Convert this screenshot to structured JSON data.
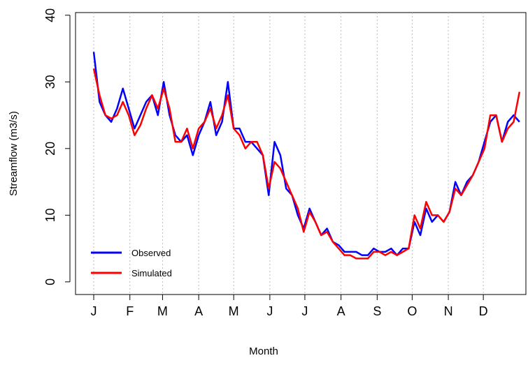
{
  "chart_data": {
    "type": "line",
    "x_label": "Month",
    "y_label": "Streamflow (m3/s)",
    "x": [
      1,
      6,
      11,
      16,
      21,
      26,
      31,
      36,
      41,
      46,
      51,
      56,
      61,
      66,
      71,
      76,
      81,
      86,
      91,
      96,
      101,
      106,
      111,
      116,
      121,
      126,
      131,
      136,
      141,
      146,
      151,
      156,
      161,
      166,
      171,
      176,
      181,
      186,
      191,
      196,
      201,
      206,
      211,
      216,
      221,
      226,
      231,
      236,
      241,
      246,
      251,
      256,
      261,
      266,
      271,
      276,
      281,
      286,
      291,
      296,
      301,
      306,
      311,
      316,
      321,
      326,
      331,
      336,
      341,
      346,
      351,
      356,
      361,
      366
    ],
    "series": [
      {
        "name": "Observed",
        "color": "#0000ff",
        "values": [
          34.5,
          27,
          25,
          24,
          26,
          29,
          26,
          23,
          25,
          27,
          28,
          25,
          30,
          25,
          22,
          21,
          22,
          19,
          22,
          24,
          27,
          22,
          24,
          30,
          23,
          23,
          21,
          21,
          20,
          19,
          13,
          21,
          19,
          14,
          13,
          10,
          8,
          11,
          9,
          7,
          8,
          6,
          5.5,
          4.5,
          4.5,
          4.5,
          4,
          4,
          5,
          4.5,
          4.5,
          5,
          4,
          5,
          5,
          9,
          7,
          11,
          9,
          10,
          9,
          10.5,
          15,
          13,
          15,
          16,
          18,
          21,
          24,
          25,
          21,
          24,
          25,
          24
        ]
      },
      {
        "name": "Simulated",
        "color": "#ff0000",
        "values": [
          32,
          28,
          25,
          24.5,
          25,
          27,
          25,
          22,
          23.5,
          26,
          28,
          26,
          29,
          26,
          21,
          21,
          23,
          20,
          23,
          24,
          26,
          23,
          25,
          28,
          23,
          22,
          20,
          21,
          21,
          19,
          14,
          18,
          17,
          15,
          13,
          11,
          7.5,
          10.5,
          9,
          7,
          7.5,
          6,
          5,
          4,
          4,
          3.5,
          3.5,
          3.5,
          4.5,
          4.5,
          4,
          4.5,
          4,
          4.5,
          5,
          10,
          8,
          12,
          10,
          10,
          9,
          10.5,
          14,
          13,
          14.5,
          16,
          18,
          20,
          25,
          25,
          21,
          23,
          24,
          28.5
        ]
      }
    ],
    "xlim": [
      -14.6,
      371.5
    ],
    "xticks": [
      {
        "value": 1,
        "label": "J"
      },
      {
        "value": 32,
        "label": "F"
      },
      {
        "value": 60,
        "label": "M"
      },
      {
        "value": 91,
        "label": "A"
      },
      {
        "value": 121,
        "label": "M"
      },
      {
        "value": 152,
        "label": "J"
      },
      {
        "value": 182,
        "label": "J"
      },
      {
        "value": 213,
        "label": "A"
      },
      {
        "value": 244,
        "label": "S"
      },
      {
        "value": 274,
        "label": "O"
      },
      {
        "value": 305,
        "label": "N"
      },
      {
        "value": 335,
        "label": "D"
      }
    ],
    "ylim": [
      -1.9,
      40.4
    ],
    "yticks": [
      0,
      10,
      20,
      30,
      40
    ],
    "grid": true,
    "legend": "lower-left"
  }
}
